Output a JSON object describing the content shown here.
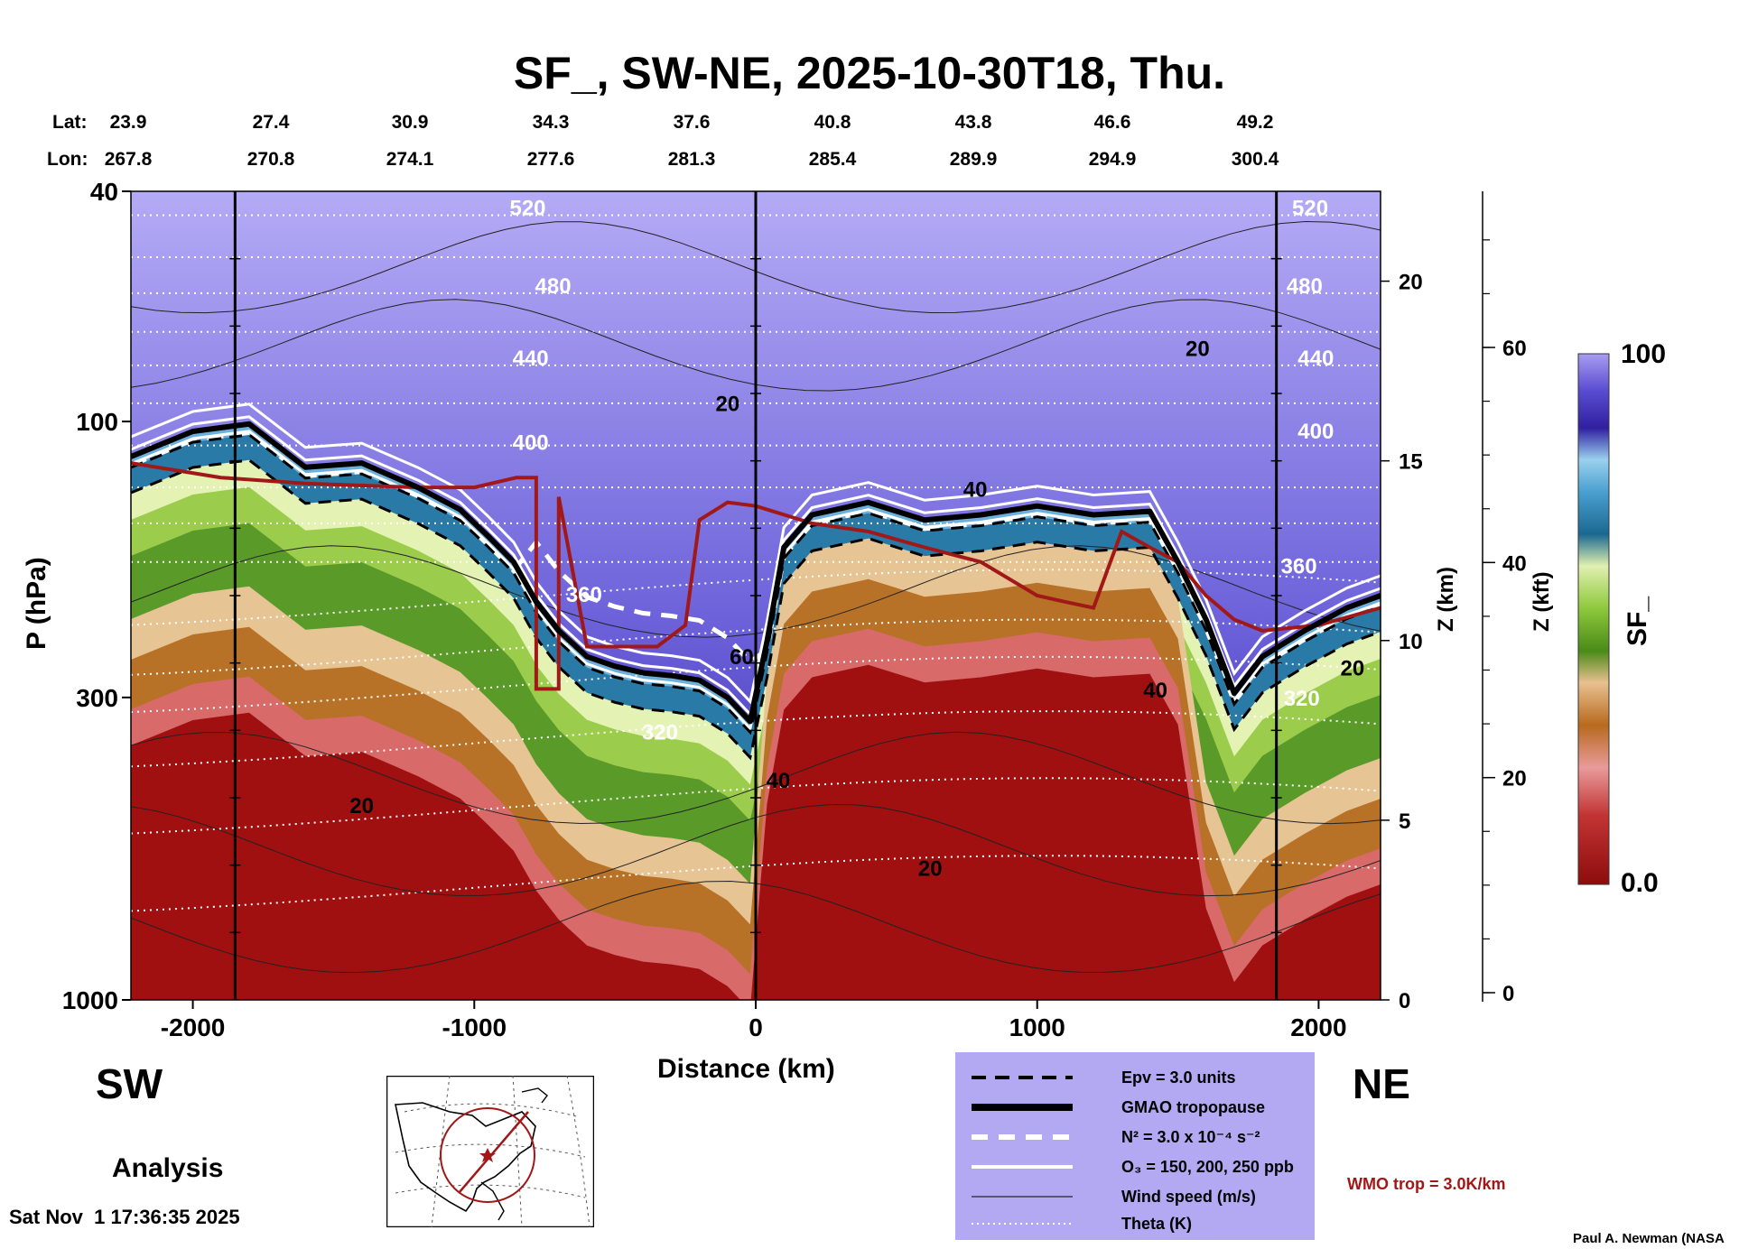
{
  "title": "SF_, SW-NE, 2025-10-30T18, Thu.",
  "lat_label": "Lat:",
  "lon_label": "Lon:",
  "lats": [
    "23.9",
    "27.4",
    "30.9",
    "34.3",
    "37.6",
    "40.8",
    "43.8",
    "46.6",
    "49.2"
  ],
  "lons": [
    "267.8",
    "270.8",
    "274.1",
    "277.6",
    "281.3",
    "285.4",
    "289.9",
    "294.9",
    "300.4"
  ],
  "sw_label": "SW",
  "ne_label": "NE",
  "analysis_label": "Analysis",
  "timestamp": "Sat Nov  1 17:36:35 2025",
  "credit": "Paul A. Newman (NASA",
  "wmo_label": "WMO trop = 3.0K/km",
  "colorbar": {
    "label": "SF_",
    "max": "100",
    "min": "0.0"
  },
  "legend": [
    {
      "name": "Epv = 3.0 units",
      "style": "dashed-black"
    },
    {
      "name": "GMAO tropopause",
      "style": "thick-black"
    },
    {
      "name": "N² = 3.0 x 10⁻⁴ s⁻²",
      "style": "dashed-white"
    },
    {
      "name": "O₃ = 150, 200, 250 ppb",
      "style": "solid-white"
    },
    {
      "name": "Wind speed (m/s)",
      "style": "thin-black"
    },
    {
      "name": "Theta (K)",
      "style": "dotted-white"
    }
  ],
  "colors": {
    "legend_bg": "#b3a9f3",
    "wmo_trop": "#a01818",
    "stratosphere": "#b3a9f3",
    "troposphere": "#a01010"
  },
  "chart_data": {
    "type": "heatmap",
    "title": "SF_, SW-NE, 2025-10-30T18, Thu.",
    "xlabel": "Distance (km)",
    "ylabel": "P (hPa)",
    "y2label": "Z (km)",
    "y3label": "Z (kft)",
    "xlim": [
      -2220,
      2220
    ],
    "ylim": [
      1000,
      40
    ],
    "yscale": "log",
    "x_ticks": [
      -2000,
      -1000,
      0,
      1000,
      2000
    ],
    "x_tick_labels": [
      "-2000",
      "-1000",
      "0",
      "1000",
      "2000"
    ],
    "y_ticks": [
      1000,
      300,
      100,
      40
    ],
    "y_tick_labels": [
      "1000",
      "300",
      "100",
      "40"
    ],
    "z_km_ticks": [
      0,
      5,
      10,
      15,
      20
    ],
    "z_km_tick_labels": [
      "0",
      "5",
      "10",
      "15",
      "20"
    ],
    "z_kft_ticks": [
      0,
      20,
      40,
      60
    ],
    "z_kft_tick_labels": [
      "0",
      "20",
      "40",
      "60"
    ],
    "colorbar_range": [
      0.0,
      100
    ],
    "tropopause_gmao": [
      [
        -2220,
        115
      ],
      [
        -2000,
        104
      ],
      [
        -1800,
        101
      ],
      [
        -1600,
        120
      ],
      [
        -1400,
        118
      ],
      [
        -1200,
        130
      ],
      [
        -1050,
        142
      ],
      [
        -950,
        158
      ],
      [
        -860,
        175
      ],
      [
        -780,
        205
      ],
      [
        -700,
        230
      ],
      [
        -600,
        255
      ],
      [
        -500,
        265
      ],
      [
        -400,
        272
      ],
      [
        -300,
        275
      ],
      [
        -200,
        280
      ],
      [
        -100,
        300
      ],
      [
        -20,
        330
      ],
      [
        40,
        240
      ],
      [
        100,
        165
      ],
      [
        200,
        145
      ],
      [
        400,
        138
      ],
      [
        600,
        148
      ],
      [
        800,
        145
      ],
      [
        1000,
        140
      ],
      [
        1200,
        145
      ],
      [
        1400,
        143
      ],
      [
        1500,
        175
      ],
      [
        1600,
        220
      ],
      [
        1700,
        295
      ],
      [
        1800,
        255
      ],
      [
        1950,
        230
      ],
      [
        2100,
        210
      ],
      [
        2220,
        200
      ]
    ],
    "wmo_tropopause": [
      [
        -2220,
        118
      ],
      [
        -1900,
        125
      ],
      [
        -1600,
        128
      ],
      [
        -1200,
        130
      ],
      [
        -1000,
        130
      ],
      [
        -850,
        125
      ],
      [
        -780,
        125
      ],
      [
        -780,
        290
      ],
      [
        -700,
        290
      ],
      [
        -700,
        135
      ],
      [
        -600,
        245
      ],
      [
        -350,
        245
      ],
      [
        -250,
        225
      ],
      [
        -200,
        148
      ],
      [
        -100,
        138
      ],
      [
        0,
        140
      ],
      [
        200,
        150
      ],
      [
        400,
        155
      ],
      [
        600,
        165
      ],
      [
        800,
        175
      ],
      [
        1000,
        200
      ],
      [
        1100,
        205
      ],
      [
        1200,
        210
      ],
      [
        1300,
        155
      ],
      [
        1400,
        165
      ],
      [
        1500,
        175
      ],
      [
        1600,
        200
      ],
      [
        1700,
        220
      ],
      [
        1800,
        230
      ],
      [
        2000,
        225
      ],
      [
        2220,
        210
      ]
    ],
    "theta_labels": [
      {
        "x": -810,
        "p": 44,
        "text": "520"
      },
      {
        "x": 1970,
        "p": 44,
        "text": "520"
      },
      {
        "x": -720,
        "p": 60,
        "text": "480"
      },
      {
        "x": 1950,
        "p": 60,
        "text": "480"
      },
      {
        "x": -800,
        "p": 80,
        "text": "440"
      },
      {
        "x": 1990,
        "p": 80,
        "text": "440"
      },
      {
        "x": -800,
        "p": 112,
        "text": "400"
      },
      {
        "x": 1990,
        "p": 107,
        "text": "400"
      },
      {
        "x": -610,
        "p": 205,
        "text": "360"
      },
      {
        "x": 1930,
        "p": 183,
        "text": "360"
      },
      {
        "x": -340,
        "p": 355,
        "text": "320"
      },
      {
        "x": 1940,
        "p": 310,
        "text": "320"
      }
    ],
    "wind_labels": [
      {
        "x": -100,
        "p": 96,
        "text": "20"
      },
      {
        "x": 1570,
        "p": 77,
        "text": "20"
      },
      {
        "x": 780,
        "p": 135,
        "text": "40"
      },
      {
        "x": -50,
        "p": 263,
        "text": "60"
      },
      {
        "x": 1420,
        "p": 300,
        "text": "40"
      },
      {
        "x": 2120,
        "p": 275,
        "text": "20"
      },
      {
        "x": -1400,
        "p": 475,
        "text": "20"
      },
      {
        "x": 80,
        "p": 430,
        "text": "40"
      },
      {
        "x": 620,
        "p": 610,
        "text": "20"
      }
    ]
  }
}
